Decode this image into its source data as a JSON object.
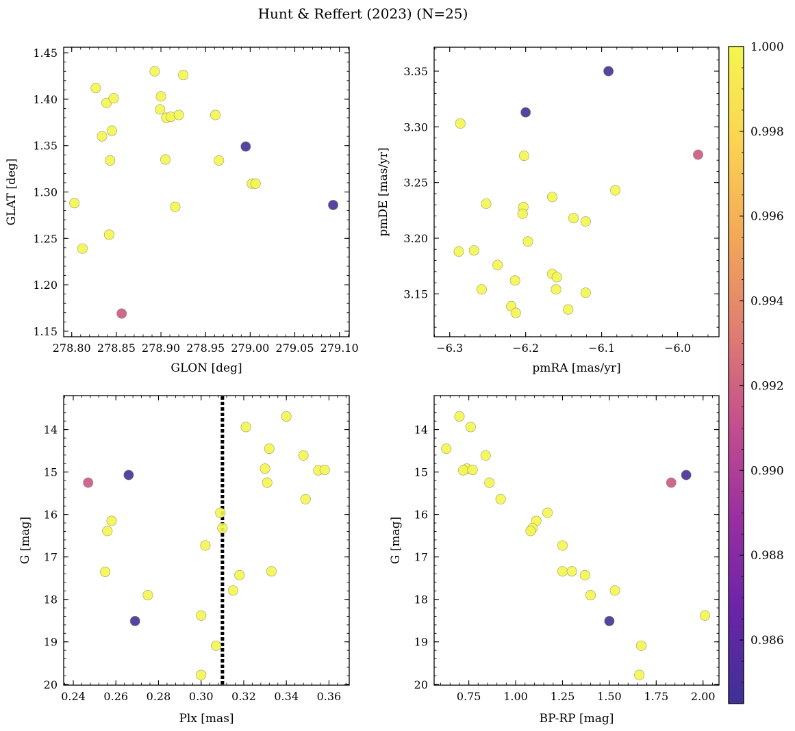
{
  "figure": {
    "title": "Hunt & Reffert (2023) (N=25)"
  },
  "colormap": {
    "name": "plasma",
    "range": [
      0.9845,
      1.0
    ],
    "ticks": [
      "0.986",
      "0.988",
      "0.990",
      "0.992",
      "0.994",
      "0.996",
      "0.998",
      "1.000"
    ],
    "tick_values": [
      0.986,
      0.988,
      0.99,
      0.992,
      0.994,
      0.996,
      0.998,
      1.0
    ],
    "stops": [
      "#3f3195",
      "#6a24a8",
      "#9a2fa1",
      "#c4508c",
      "#e07f70",
      "#f3a958",
      "#fbd452",
      "#f4f650"
    ]
  },
  "chart_data": [
    {
      "type": "scatter",
      "id": "glon-glat",
      "xlabel": "GLON [deg]",
      "ylabel": "GLAT [deg]",
      "xlim": [
        278.791,
        279.111
      ],
      "ylim": [
        1.144,
        1.456
      ],
      "xticks": [
        278.8,
        278.85,
        278.9,
        278.95,
        279.0,
        279.05,
        279.1
      ],
      "xticklabels": [
        "278.80",
        "278.85",
        "278.90",
        "278.95",
        "279.00",
        "279.05",
        "279.10"
      ],
      "yticks": [
        1.15,
        1.2,
        1.25,
        1.3,
        1.35,
        1.4,
        1.45
      ],
      "yticklabels": [
        "1.15",
        "1.20",
        "1.25",
        "1.30",
        "1.35",
        "1.40",
        "1.45"
      ],
      "y_inverted": false,
      "points": [
        {
          "x": 278.827,
          "y": 1.412,
          "c": 1.0
        },
        {
          "x": 278.839,
          "y": 1.396,
          "c": 1.0
        },
        {
          "x": 278.845,
          "y": 1.366,
          "c": 1.0
        },
        {
          "x": 278.847,
          "y": 1.401,
          "c": 1.0
        },
        {
          "x": 278.893,
          "y": 1.43,
          "c": 1.0
        },
        {
          "x": 278.9,
          "y": 1.403,
          "c": 1.0
        },
        {
          "x": 278.899,
          "y": 1.389,
          "c": 1.0
        },
        {
          "x": 278.906,
          "y": 1.38,
          "c": 1.0
        },
        {
          "x": 278.911,
          "y": 1.381,
          "c": 1.0
        },
        {
          "x": 278.92,
          "y": 1.383,
          "c": 1.0
        },
        {
          "x": 278.925,
          "y": 1.426,
          "c": 1.0
        },
        {
          "x": 278.961,
          "y": 1.383,
          "c": 1.0
        },
        {
          "x": 278.834,
          "y": 1.36,
          "c": 1.0
        },
        {
          "x": 278.843,
          "y": 1.334,
          "c": 1.0
        },
        {
          "x": 278.905,
          "y": 1.335,
          "c": 1.0
        },
        {
          "x": 278.965,
          "y": 1.334,
          "c": 1.0
        },
        {
          "x": 279.002,
          "y": 1.309,
          "c": 1.0
        },
        {
          "x": 279.006,
          "y": 1.309,
          "c": 1.0
        },
        {
          "x": 278.803,
          "y": 1.288,
          "c": 1.0
        },
        {
          "x": 278.916,
          "y": 1.284,
          "c": 1.0
        },
        {
          "x": 278.842,
          "y": 1.254,
          "c": 1.0
        },
        {
          "x": 278.812,
          "y": 1.239,
          "c": 1.0
        },
        {
          "x": 278.995,
          "y": 1.349,
          "c": 0.9848
        },
        {
          "x": 279.093,
          "y": 1.286,
          "c": 0.9848
        },
        {
          "x": 278.856,
          "y": 1.169,
          "c": 0.9915
        }
      ]
    },
    {
      "type": "scatter",
      "id": "pmra-pmde",
      "xlabel": "pmRA [mas/yr]",
      "ylabel": "pmDE [mas/yr]",
      "xlim": [
        -6.3205,
        -5.9455
      ],
      "ylim": [
        3.1115,
        3.3715
      ],
      "xticks": [
        -6.3,
        -6.2,
        -6.1,
        -6.0
      ],
      "xticklabels": [
        "−6.3",
        "−6.2",
        "−6.1",
        "−6.0"
      ],
      "yticks": [
        3.15,
        3.2,
        3.25,
        3.3,
        3.35
      ],
      "yticklabels": [
        "3.15",
        "3.20",
        "3.25",
        "3.30",
        "3.35"
      ],
      "y_inverted": false,
      "points": [
        {
          "x": -6.286,
          "y": 3.303,
          "c": 1.0
        },
        {
          "x": -6.202,
          "y": 3.274,
          "c": 1.0
        },
        {
          "x": -6.082,
          "y": 3.243,
          "c": 1.0
        },
        {
          "x": -6.165,
          "y": 3.237,
          "c": 1.0
        },
        {
          "x": -6.252,
          "y": 3.231,
          "c": 1.0
        },
        {
          "x": -6.203,
          "y": 3.228,
          "c": 1.0
        },
        {
          "x": -6.204,
          "y": 3.222,
          "c": 1.0
        },
        {
          "x": -6.137,
          "y": 3.218,
          "c": 1.0
        },
        {
          "x": -6.121,
          "y": 3.215,
          "c": 1.0
        },
        {
          "x": -6.197,
          "y": 3.197,
          "c": 1.0
        },
        {
          "x": -6.288,
          "y": 3.188,
          "c": 1.0
        },
        {
          "x": -6.268,
          "y": 3.189,
          "c": 1.0
        },
        {
          "x": -6.237,
          "y": 3.176,
          "c": 1.0
        },
        {
          "x": -6.165,
          "y": 3.168,
          "c": 1.0
        },
        {
          "x": -6.159,
          "y": 3.165,
          "c": 1.0
        },
        {
          "x": -6.214,
          "y": 3.162,
          "c": 1.0
        },
        {
          "x": -6.258,
          "y": 3.154,
          "c": 1.0
        },
        {
          "x": -6.16,
          "y": 3.154,
          "c": 1.0
        },
        {
          "x": -6.121,
          "y": 3.151,
          "c": 1.0
        },
        {
          "x": -6.219,
          "y": 3.139,
          "c": 1.0
        },
        {
          "x": -6.144,
          "y": 3.136,
          "c": 1.0
        },
        {
          "x": -6.213,
          "y": 3.133,
          "c": 1.0
        },
        {
          "x": -6.091,
          "y": 3.35,
          "c": 0.9848
        },
        {
          "x": -6.2,
          "y": 3.313,
          "c": 0.9848
        },
        {
          "x": -5.973,
          "y": 3.275,
          "c": 0.9915
        }
      ]
    },
    {
      "type": "scatter",
      "id": "plx-g",
      "xlabel": "Plx [mas]",
      "ylabel": "G [mag]",
      "xlim": [
        0.2355,
        0.3695
      ],
      "ylim": [
        13.2,
        20.02
      ],
      "xticks": [
        0.24,
        0.26,
        0.28,
        0.3,
        0.32,
        0.34,
        0.36
      ],
      "xticklabels": [
        "0.24",
        "0.26",
        "0.28",
        "0.30",
        "0.32",
        "0.34",
        "0.36"
      ],
      "yticks": [
        14,
        15,
        16,
        17,
        18,
        19,
        20
      ],
      "yticklabels": [
        "14",
        "15",
        "16",
        "17",
        "18",
        "19",
        "20"
      ],
      "y_inverted": true,
      "vline": {
        "x": 0.31
      },
      "points": [
        {
          "x": 0.34,
          "y": 13.69,
          "c": 1.0
        },
        {
          "x": 0.321,
          "y": 13.94,
          "c": 1.0
        },
        {
          "x": 0.332,
          "y": 14.45,
          "c": 1.0
        },
        {
          "x": 0.348,
          "y": 14.61,
          "c": 1.0
        },
        {
          "x": 0.33,
          "y": 14.92,
          "c": 1.0
        },
        {
          "x": 0.355,
          "y": 14.96,
          "c": 1.0
        },
        {
          "x": 0.358,
          "y": 14.95,
          "c": 1.0
        },
        {
          "x": 0.331,
          "y": 15.25,
          "c": 1.0
        },
        {
          "x": 0.349,
          "y": 15.64,
          "c": 1.0
        },
        {
          "x": 0.309,
          "y": 15.96,
          "c": 1.0
        },
        {
          "x": 0.258,
          "y": 16.15,
          "c": 1.0
        },
        {
          "x": 0.31,
          "y": 16.32,
          "c": 1.0
        },
        {
          "x": 0.256,
          "y": 16.39,
          "c": 1.0
        },
        {
          "x": 0.302,
          "y": 16.73,
          "c": 1.0
        },
        {
          "x": 0.255,
          "y": 17.35,
          "c": 1.0
        },
        {
          "x": 0.333,
          "y": 17.34,
          "c": 1.0
        },
        {
          "x": 0.318,
          "y": 17.43,
          "c": 1.0
        },
        {
          "x": 0.315,
          "y": 17.79,
          "c": 1.0
        },
        {
          "x": 0.275,
          "y": 17.9,
          "c": 1.0
        },
        {
          "x": 0.3,
          "y": 18.38,
          "c": 1.0
        },
        {
          "x": 0.307,
          "y": 19.09,
          "c": 1.0
        },
        {
          "x": 0.3,
          "y": 19.78,
          "c": 1.0
        },
        {
          "x": 0.266,
          "y": 15.07,
          "c": 0.9848
        },
        {
          "x": 0.269,
          "y": 18.51,
          "c": 0.9848
        },
        {
          "x": 0.247,
          "y": 15.25,
          "c": 0.9915
        }
      ]
    },
    {
      "type": "scatter",
      "id": "bprp-g",
      "xlabel": "BP-RP [mag]",
      "ylabel": "G [mag]",
      "xlim": [
        0.565,
        2.085
      ],
      "ylim": [
        13.2,
        20.02
      ],
      "xticks": [
        0.75,
        1.0,
        1.25,
        1.5,
        1.75,
        2.0
      ],
      "xticklabels": [
        "0.75",
        "1.00",
        "1.25",
        "1.50",
        "1.75",
        "2.00"
      ],
      "yticks": [
        14,
        15,
        16,
        17,
        18,
        19,
        20
      ],
      "yticklabels": [
        "14",
        "15",
        "16",
        "17",
        "18",
        "19",
        "20"
      ],
      "y_inverted": true,
      "points": [
        {
          "x": 0.7,
          "y": 13.69,
          "c": 1.0
        },
        {
          "x": 0.76,
          "y": 13.94,
          "c": 1.0
        },
        {
          "x": 0.63,
          "y": 14.45,
          "c": 1.0
        },
        {
          "x": 0.84,
          "y": 14.61,
          "c": 1.0
        },
        {
          "x": 0.74,
          "y": 14.92,
          "c": 1.0
        },
        {
          "x": 0.72,
          "y": 14.96,
          "c": 1.0
        },
        {
          "x": 0.77,
          "y": 14.95,
          "c": 1.0
        },
        {
          "x": 0.86,
          "y": 15.25,
          "c": 1.0
        },
        {
          "x": 0.92,
          "y": 15.64,
          "c": 1.0
        },
        {
          "x": 1.17,
          "y": 15.96,
          "c": 1.0
        },
        {
          "x": 1.11,
          "y": 16.15,
          "c": 1.0
        },
        {
          "x": 1.09,
          "y": 16.32,
          "c": 1.0
        },
        {
          "x": 1.08,
          "y": 16.39,
          "c": 1.0
        },
        {
          "x": 1.25,
          "y": 16.73,
          "c": 1.0
        },
        {
          "x": 1.25,
          "y": 17.34,
          "c": 1.0
        },
        {
          "x": 1.3,
          "y": 17.34,
          "c": 1.0
        },
        {
          "x": 1.37,
          "y": 17.43,
          "c": 1.0
        },
        {
          "x": 1.53,
          "y": 17.79,
          "c": 1.0
        },
        {
          "x": 1.4,
          "y": 17.9,
          "c": 1.0
        },
        {
          "x": 2.01,
          "y": 18.38,
          "c": 1.0
        },
        {
          "x": 1.67,
          "y": 19.09,
          "c": 1.0
        },
        {
          "x": 1.66,
          "y": 19.78,
          "c": 1.0
        },
        {
          "x": 1.91,
          "y": 15.07,
          "c": 0.9848
        },
        {
          "x": 1.5,
          "y": 18.51,
          "c": 0.9848
        },
        {
          "x": 1.83,
          "y": 15.25,
          "c": 0.9915
        }
      ]
    }
  ]
}
